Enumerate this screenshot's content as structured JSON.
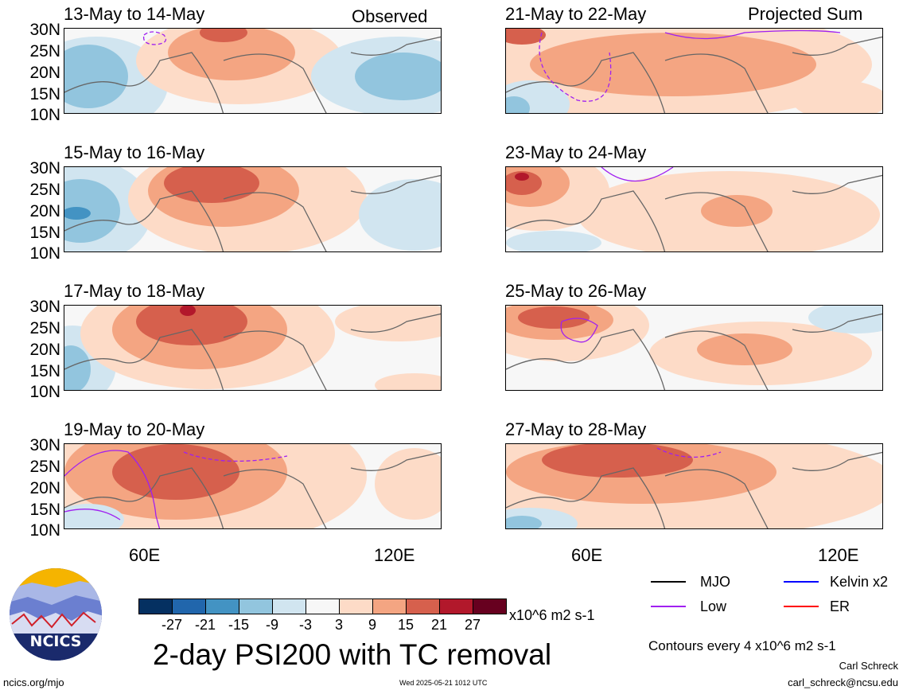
{
  "panels": {
    "left": [
      {
        "title": "13-May to 14-May",
        "tag": "Observed"
      },
      {
        "title": "15-May to 16-May",
        "tag": ""
      },
      {
        "title": "17-May to 18-May",
        "tag": ""
      },
      {
        "title": "19-May to 20-May",
        "tag": ""
      }
    ],
    "right": [
      {
        "title": "21-May to 22-May",
        "tag": "Projected Sum"
      },
      {
        "title": "23-May to 24-May",
        "tag": ""
      },
      {
        "title": "25-May to 26-May",
        "tag": ""
      },
      {
        "title": "27-May to 28-May",
        "tag": ""
      }
    ]
  },
  "lat_labels": [
    "30N",
    "25N",
    "20N",
    "15N",
    "10N"
  ],
  "lon_labels": [
    "60E",
    "120E"
  ],
  "colorbar": {
    "colors": [
      "#053061",
      "#2166ac",
      "#4393c3",
      "#92c5de",
      "#d1e5f0",
      "#f7f7f7",
      "#fddbc7",
      "#f4a582",
      "#d6604d",
      "#b2182b",
      "#67001f"
    ],
    "labels": [
      "-27",
      "-21",
      "-15",
      "-9",
      "-3",
      "3",
      "9",
      "15",
      "21",
      "27"
    ],
    "units": "x10^6 m2 s-1"
  },
  "legend": {
    "items": [
      {
        "label": "MJO",
        "color": "#000000"
      },
      {
        "label": "Kelvin x2",
        "color": "#0000ff"
      },
      {
        "label": "Low",
        "color": "#a020f0"
      },
      {
        "label": "ER",
        "color": "#ff0000"
      }
    ],
    "contours_note": "Contours every 4 x10^6 m2 s-1"
  },
  "footer": {
    "main_title": "2-day PSI200 with TC removal",
    "logo_text": "NCICS",
    "url": "ncics.org/mjo",
    "timestamp": "Wed 2025-05-21 1012 UTC",
    "author": "Carl Schreck",
    "email": "carl_schreck@ncsu.edu"
  }
}
